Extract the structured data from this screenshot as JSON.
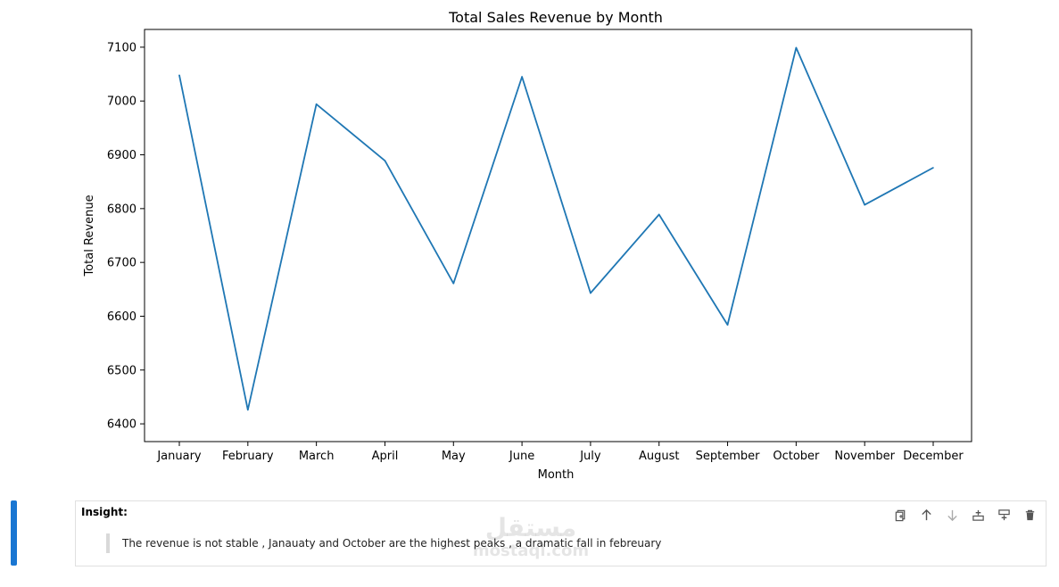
{
  "chart_data": {
    "type": "line",
    "title": "Total Sales Revenue by Month",
    "xlabel": "Month",
    "ylabel": "Total Revenue",
    "categories": [
      "January",
      "February",
      "March",
      "April",
      "May",
      "June",
      "July",
      "August",
      "September",
      "October",
      "November",
      "December"
    ],
    "values": [
      7048,
      6426,
      6994,
      6889,
      6661,
      7045,
      6643,
      6789,
      6584,
      7099,
      6807,
      6876
    ],
    "ylim": [
      6367,
      7133
    ],
    "yticks": [
      6400,
      6500,
      6600,
      6700,
      6800,
      6900,
      7000,
      7100
    ],
    "color": "#1f77b4",
    "grid": false
  },
  "notebook_cell": {
    "title": "Insight:",
    "text": "The revenue is not stable , Janauaty and October are the highest peaks , a dramatic fall in febreuary",
    "accent_color": "#1976d2",
    "toolbar_icons": [
      "duplicate-icon",
      "move-up-icon",
      "move-down-icon",
      "insert-above-icon",
      "insert-below-icon",
      "delete-icon"
    ]
  },
  "watermark": {
    "arabic": "مستقل",
    "latin": "mostaql.com"
  }
}
